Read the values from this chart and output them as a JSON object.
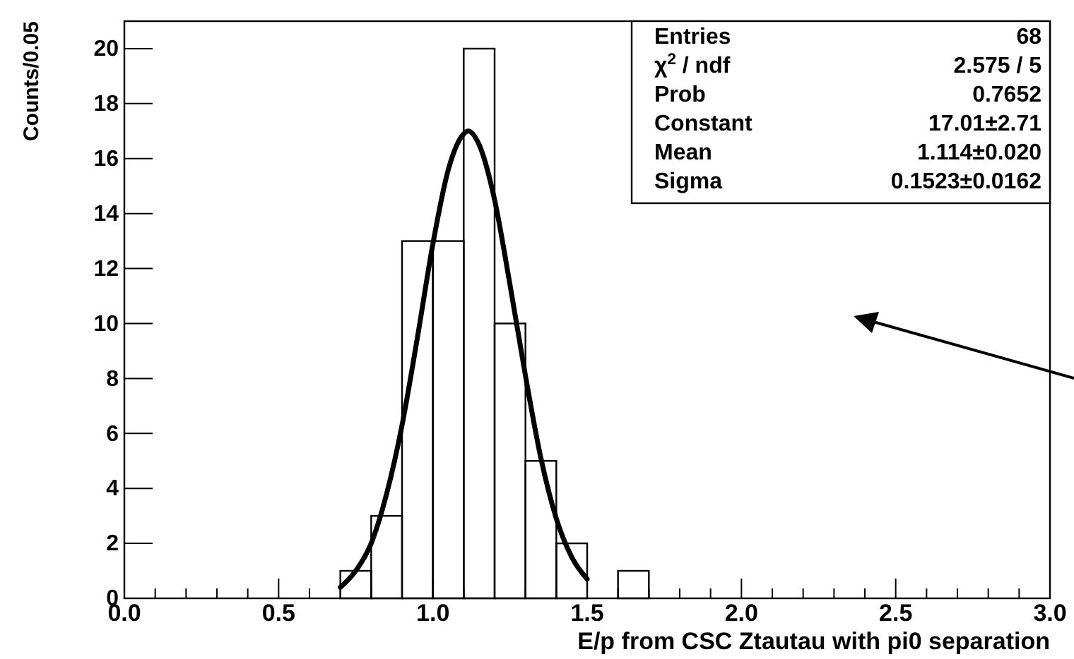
{
  "chart_data": {
    "type": "histogram",
    "xlabel": "E/p from CSC Ztautau with pi0 separation",
    "ylabel": "Counts/0.05",
    "bins": [
      0,
      0.1,
      0.2,
      0.3,
      0.4,
      0.5,
      0.6,
      0.7,
      0.8,
      0.9,
      1.0,
      1.1,
      1.2,
      1.3,
      1.4,
      1.5,
      1.6,
      1.7,
      1.8,
      1.9,
      2.0,
      2.1,
      2.2,
      2.3,
      2.4,
      2.5,
      2.6,
      2.7,
      2.8,
      2.9,
      3.0
    ],
    "values": [
      0,
      0,
      0,
      0,
      0,
      0,
      0,
      1,
      3,
      13,
      13,
      20,
      10,
      5,
      2,
      0,
      1,
      0,
      0,
      0,
      0,
      0,
      0,
      0,
      0,
      0,
      0,
      0,
      0,
      0
    ],
    "color": "#000000",
    "series": [
      {
        "type": "line",
        "color": "#000000",
        "x": [
          0.7,
          0.75,
          0.8,
          0.85,
          0.9,
          0.95,
          1.0,
          1.05,
          1.1,
          1.114,
          1.15,
          1.2,
          1.25,
          1.3,
          1.35,
          1.4,
          1.45,
          1.5
        ],
        "values": [
          0.4,
          1.0,
          2.0,
          3.8,
          6.3,
          9.5,
          12.9,
          15.6,
          16.9,
          17.0,
          16.5,
          14.5,
          11.4,
          8.1,
          5.1,
          2.9,
          1.5,
          0.7
        ]
      }
    ],
    "xlim": [
      0,
      3
    ],
    "xticks": [
      {
        "value": 0,
        "label": "0.0"
      },
      {
        "value": 0.1,
        "label": null
      },
      {
        "value": 0.2,
        "label": null
      },
      {
        "value": 0.3,
        "label": null
      },
      {
        "value": 0.4,
        "label": null
      },
      {
        "value": 0.5,
        "label": "0.5"
      },
      {
        "value": 0.6,
        "label": null
      },
      {
        "value": 0.7,
        "label": null
      },
      {
        "value": 0.8,
        "label": null
      },
      {
        "value": 0.9,
        "label": null
      },
      {
        "value": 1,
        "label": "1.0"
      },
      {
        "value": 1.1,
        "label": null
      },
      {
        "value": 1.2,
        "label": null
      },
      {
        "value": 1.3,
        "label": null
      },
      {
        "value": 1.4,
        "label": null
      },
      {
        "value": 1.5,
        "label": "1.5"
      },
      {
        "value": 1.6,
        "label": null
      },
      {
        "value": 1.7,
        "label": null
      },
      {
        "value": 1.8,
        "label": null
      },
      {
        "value": 1.9,
        "label": null
      },
      {
        "value": 2,
        "label": "2.0"
      },
      {
        "value": 2.1,
        "label": null
      },
      {
        "value": 2.2,
        "label": null
      },
      {
        "value": 2.3,
        "label": null
      },
      {
        "value": 2.4,
        "label": null
      },
      {
        "value": 2.5,
        "label": "2.5"
      },
      {
        "value": 2.6,
        "label": null
      },
      {
        "value": 2.7,
        "label": null
      },
      {
        "value": 2.8,
        "label": null
      },
      {
        "value": 2.9,
        "label": null
      },
      {
        "value": 3,
        "label": "3.0"
      }
    ],
    "ylim": [
      0,
      21
    ],
    "yticks": [
      0,
      2,
      4,
      6,
      8,
      10,
      12,
      14,
      16,
      18,
      20
    ],
    "grid": false,
    "annotations": [
      "Entries",
      "68",
      "χ$^{2}$ / ndf",
      "2.575 / 5",
      "Prob",
      "0.7652",
      "Constant",
      "17.01±2.71",
      "Mean",
      "1.114±0.020",
      "Sigma",
      "0.1523±0.0162"
    ]
  }
}
